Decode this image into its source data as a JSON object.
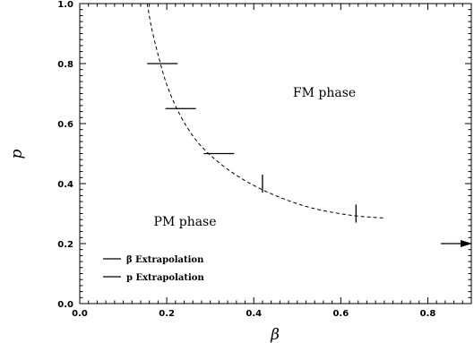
{
  "chart_data": {
    "type": "scatter",
    "xlabel": "β",
    "ylabel": "p",
    "xlim": [
      0.0,
      0.9
    ],
    "ylim": [
      0.0,
      1.0
    ],
    "x_ticks": [
      "0.0",
      "0.2",
      "0.4",
      "0.6",
      "0.8"
    ],
    "y_ticks": [
      "0.0",
      "0.2",
      "0.4",
      "0.6",
      "0.8",
      "1.0"
    ],
    "grid": false,
    "annotations": [
      {
        "text": "FM phase",
        "x": 0.49,
        "y": 0.69
      },
      {
        "text": "PM phase",
        "x": 0.17,
        "y": 0.26
      }
    ],
    "phase_boundary": {
      "style": "dashed",
      "x": [
        0.155,
        0.165,
        0.18,
        0.2,
        0.23,
        0.27,
        0.32,
        0.38,
        0.45,
        0.53,
        0.62,
        0.7
      ],
      "y": [
        1.0,
        0.92,
        0.83,
        0.73,
        0.63,
        0.54,
        0.47,
        0.41,
        0.36,
        0.32,
        0.295,
        0.285
      ]
    },
    "series": [
      {
        "name": "β Extrapolation",
        "marker": "horizontal-errorbar",
        "points": [
          {
            "x": 0.19,
            "y": 0.8,
            "x_half_width": 0.035
          },
          {
            "x": 0.232,
            "y": 0.65,
            "x_half_width": 0.035
          },
          {
            "x": 0.32,
            "y": 0.5,
            "x_half_width": 0.035
          }
        ]
      },
      {
        "name": "p Extrapolation",
        "marker": "vertical-errorbar",
        "points": [
          {
            "x": 0.42,
            "y": 0.4,
            "y_half_width": 0.03
          },
          {
            "x": 0.635,
            "y": 0.3,
            "y_half_width": 0.03
          }
        ]
      }
    ],
    "legend": {
      "placement": "bottom-left",
      "entries": [
        "β Extrapolation",
        "p Extrapolation"
      ]
    },
    "right_edge_marker": {
      "y": 0.2,
      "shape": "arrow"
    }
  }
}
